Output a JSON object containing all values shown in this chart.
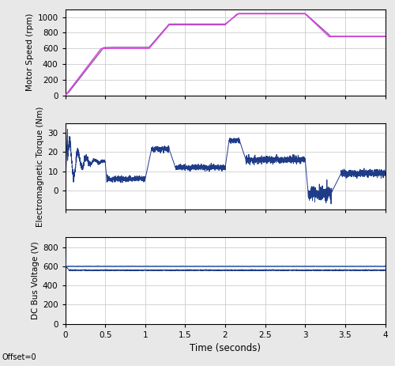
{
  "xlim": [
    0,
    4
  ],
  "xticks": [
    0,
    0.5,
    1.0,
    1.5,
    2.0,
    2.5,
    3.0,
    3.5,
    4.0
  ],
  "xlabel": "Time (seconds)",
  "offset_label": "Offset=0",
  "subplot1": {
    "ylabel": "Motor Speed (rpm)",
    "ylim": [
      0,
      1100
    ],
    "yticks": [
      0,
      200,
      400,
      600,
      800,
      1000
    ],
    "ref_color": "#dd44dd",
    "actual_color": "#8855aa",
    "ref_points": [
      [
        0,
        0
      ],
      [
        0.45,
        600
      ],
      [
        0.6,
        600
      ],
      [
        1.05,
        600
      ],
      [
        1.3,
        900
      ],
      [
        1.5,
        900
      ],
      [
        2.0,
        900
      ],
      [
        2.15,
        1040
      ],
      [
        3.0,
        1040
      ],
      [
        3.3,
        750
      ],
      [
        4.0,
        750
      ]
    ],
    "actual_points": [
      [
        0,
        0
      ],
      [
        0.05,
        50
      ],
      [
        0.48,
        610
      ],
      [
        0.6,
        615
      ],
      [
        1.05,
        615
      ],
      [
        1.3,
        910
      ],
      [
        1.5,
        910
      ],
      [
        2.0,
        910
      ],
      [
        2.17,
        1045
      ],
      [
        3.0,
        1045
      ],
      [
        3.32,
        755
      ],
      [
        4.0,
        755
      ]
    ]
  },
  "subplot2": {
    "ylabel": "Electromagnetic Torque (Nm)",
    "ylim": [
      -10,
      35
    ],
    "yticks": [
      0,
      10,
      20,
      30
    ]
  },
  "subplot3": {
    "ylabel": "DC Bus Voltage (V)",
    "ylim": [
      0,
      900
    ],
    "yticks": [
      0,
      200,
      400,
      600,
      800
    ],
    "steady_value": 560,
    "ripple_value": 600
  },
  "grid_color": "#cccccc",
  "line_color_blue": "#1f3c88",
  "background": "#ffffff",
  "fig_bg": "#e8e8e8"
}
